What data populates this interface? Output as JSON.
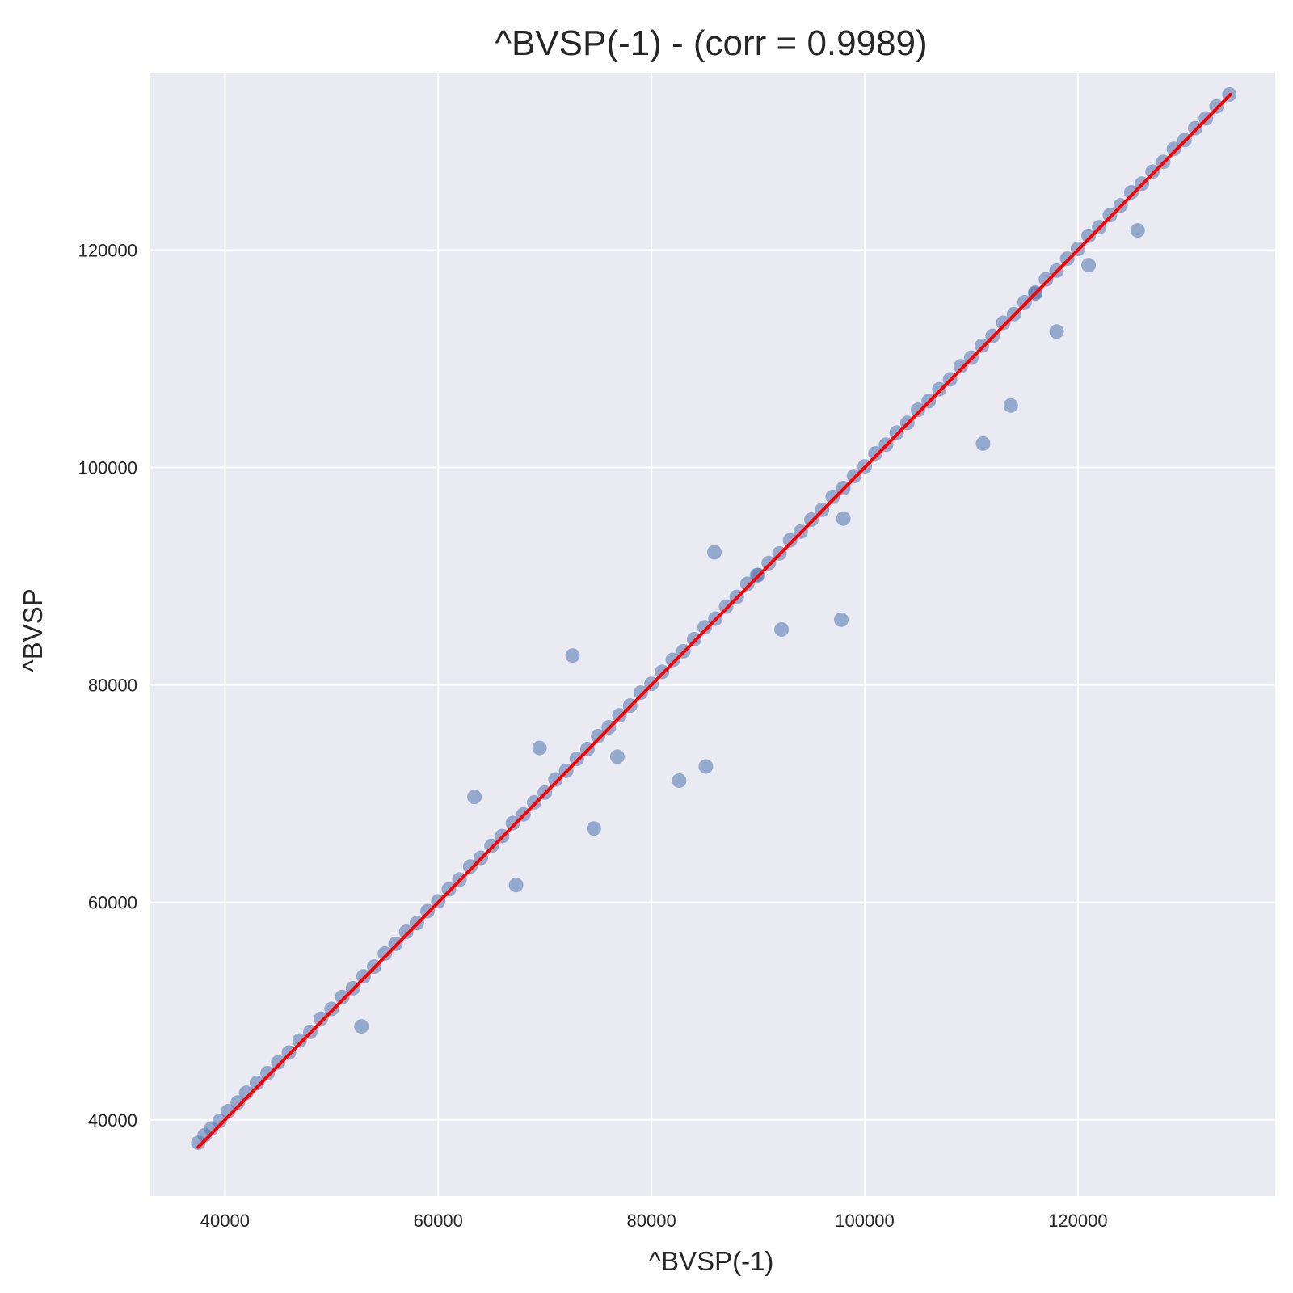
{
  "chart_data": {
    "type": "scatter",
    "title": "^BVSP(-1) - (corr = 0.9989)",
    "xlabel": "^BVSP(-1)",
    "ylabel": "^BVSP",
    "xlim": [
      33000,
      138500
    ],
    "ylim": [
      33000,
      136300
    ],
    "xticks": [
      40000,
      60000,
      80000,
      100000,
      120000
    ],
    "yticks": [
      40000,
      60000,
      80000,
      100000,
      120000
    ],
    "xtick_labels": [
      "40000",
      "60000",
      "80000",
      "100000",
      "120000"
    ],
    "ytick_labels": [
      "40000",
      "60000",
      "80000",
      "100000",
      "120000"
    ],
    "grid": true,
    "colors": {
      "background": "#eaeaf2",
      "grid": "#ffffff",
      "points": "#4c72b0",
      "fit_line": "#ff0000"
    },
    "fit_line": {
      "x": [
        37500,
        134300
      ],
      "y": [
        37500,
        134300
      ]
    },
    "series": [
      {
        "marker": "circle",
        "x": [
          37500,
          38100,
          38700,
          39500,
          40300,
          41200,
          42000,
          43000,
          44000,
          45000,
          46000,
          47000,
          48000,
          49000,
          50000,
          51000,
          52000,
          53000,
          54000,
          55000,
          56000,
          57000,
          58000,
          59000,
          60000,
          61000,
          62000,
          63000,
          64000,
          65000,
          66000,
          67000,
          68000,
          69000,
          70000,
          71000,
          72000,
          73000,
          74000,
          75000,
          76000,
          77000,
          78000,
          79000,
          80000,
          81000,
          82000,
          83000,
          84000,
          85000,
          86000,
          87000,
          88000,
          89000,
          90000,
          91000,
          92000,
          93000,
          94000,
          95000,
          96000,
          97000,
          98000,
          99000,
          100000,
          101000,
          102000,
          103000,
          104000,
          105000,
          106000,
          107000,
          108000,
          109000,
          110000,
          111000,
          112000,
          113000,
          114000,
          115000,
          116000,
          117000,
          118000,
          119000,
          120000,
          121000,
          122000,
          123000,
          124000,
          125000,
          126000,
          127000,
          128000,
          129000,
          130000,
          131000,
          132000,
          133000,
          134200,
          52800,
          67300,
          74600,
          63400,
          72600,
          82600,
          85100,
          92200,
          97800,
          113700,
          111100,
          118000,
          125600,
          85900,
          98000,
          116000,
          121000,
          69500,
          76800,
          89900
        ],
        "y": [
          37900,
          38600,
          39200,
          39900,
          40800,
          41600,
          42500,
          43400,
          44300,
          45300,
          46200,
          47300,
          48100,
          49300,
          50200,
          51300,
          52100,
          53200,
          54100,
          55300,
          56200,
          57300,
          58100,
          59200,
          60100,
          61200,
          62100,
          63300,
          64100,
          65200,
          66100,
          67300,
          68100,
          69200,
          70100,
          71300,
          72100,
          73200,
          74100,
          75300,
          76100,
          77200,
          78100,
          79300,
          80100,
          81200,
          82300,
          83100,
          84200,
          85300,
          86100,
          87200,
          88100,
          89300,
          90100,
          91200,
          92100,
          93300,
          94100,
          95200,
          96100,
          97300,
          98100,
          99200,
          100100,
          101300,
          102100,
          103200,
          104100,
          105300,
          106100,
          107200,
          108100,
          109300,
          110100,
          111200,
          112100,
          113300,
          114100,
          115200,
          116100,
          117300,
          118100,
          119200,
          120100,
          121300,
          122100,
          123200,
          124100,
          125300,
          126100,
          127200,
          128100,
          129300,
          130100,
          131200,
          132100,
          133200,
          134300,
          48600,
          61600,
          66800,
          69700,
          82700,
          71200,
          72500,
          85100,
          86000,
          105700,
          102200,
          112500,
          121800,
          92200,
          95300,
          116000,
          118600,
          74200,
          73400,
          90100
        ]
      }
    ]
  }
}
